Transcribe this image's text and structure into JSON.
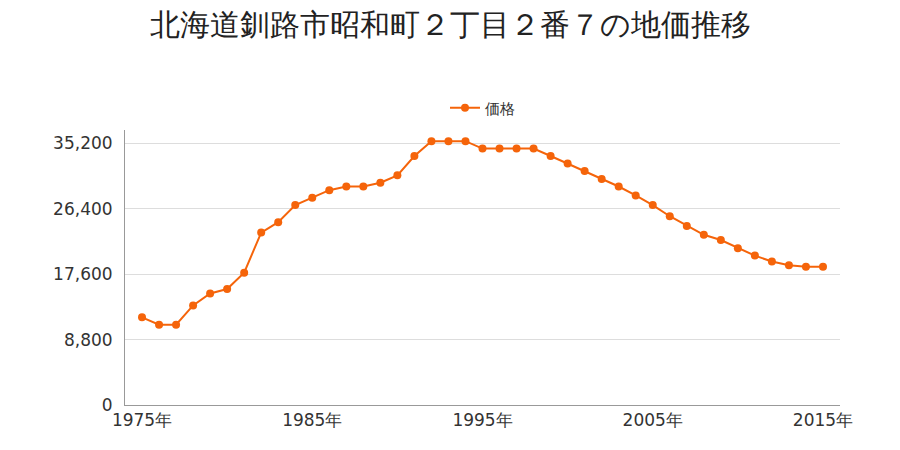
{
  "chart_data": {
    "type": "line",
    "title": "北海道釧路市昭和町２丁目２番７の地価推移",
    "x": [
      1975,
      1976,
      1977,
      1978,
      1979,
      1980,
      1981,
      1982,
      1983,
      1984,
      1985,
      1986,
      1987,
      1988,
      1989,
      1990,
      1991,
      1992,
      1993,
      1994,
      1995,
      1996,
      1997,
      1998,
      1999,
      2000,
      2001,
      2002,
      2003,
      2004,
      2005,
      2006,
      2007,
      2008,
      2009,
      2010,
      2011,
      2012,
      2013,
      2014,
      2015
    ],
    "series": [
      {
        "name": "価格",
        "color": "#f5640a",
        "marker": "circle",
        "values": [
          11800,
          10800,
          10800,
          13400,
          15000,
          15600,
          17800,
          23200,
          24600,
          26900,
          27900,
          28900,
          29400,
          29400,
          29900,
          30900,
          33500,
          35500,
          35500,
          35500,
          34500,
          34500,
          34500,
          34500,
          33500,
          32500,
          31500,
          30400,
          29400,
          28200,
          26900,
          25400,
          24100,
          22900,
          22200,
          21100,
          20100,
          19300,
          18800,
          18600,
          18600
        ]
      }
    ],
    "xlim": [
      1974,
      2016
    ],
    "xticks": [
      {
        "value": 1975,
        "label": "1975年"
      },
      {
        "value": 1985,
        "label": "1985年"
      },
      {
        "value": 1995,
        "label": "1995年"
      },
      {
        "value": 2005,
        "label": "2005年"
      },
      {
        "value": 2015,
        "label": "2015年"
      }
    ],
    "ylim": [
      0,
      37000
    ],
    "yticks": [
      0,
      {
        "value": 8800,
        "label": "8,800"
      },
      {
        "value": 17600,
        "label": "17,600"
      },
      {
        "value": 26400,
        "label": "26,400"
      },
      {
        "value": 35200,
        "label": "35,200"
      }
    ],
    "grid": true,
    "legend": "top"
  }
}
